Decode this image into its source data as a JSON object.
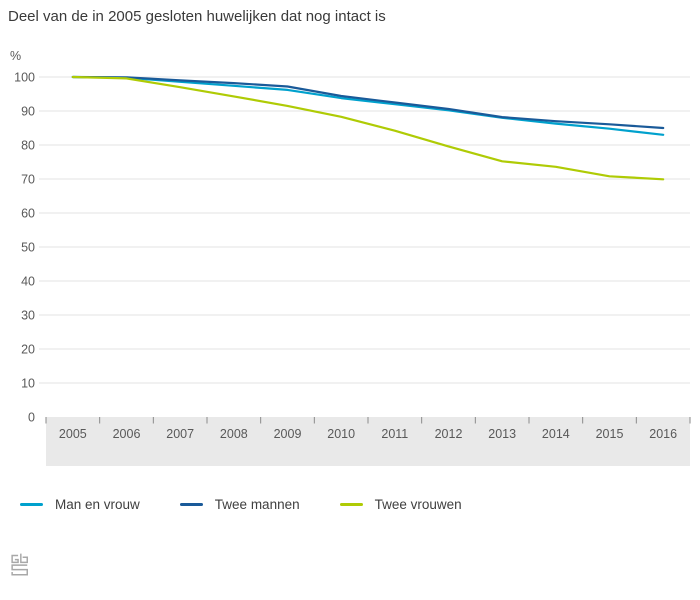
{
  "chart": {
    "title": "Deel van de in 2005 gesloten huwelijken dat nog intact is",
    "unit_label": "%"
  },
  "chart_data": {
    "type": "line",
    "title": "Deel van de in 2005 gesloten huwelijken dat nog intact is",
    "xlabel": "",
    "ylabel": "%",
    "ylim": [
      0,
      100
    ],
    "ytick_step": 10,
    "grid": true,
    "legend_position": "bottom",
    "categories": [
      "2005",
      "2006",
      "2007",
      "2008",
      "2009",
      "2010",
      "2011",
      "2012",
      "2013",
      "2014",
      "2015",
      "2016"
    ],
    "series": [
      {
        "name": "Man en vrouw",
        "color": "#00a1cd",
        "values": [
          100,
          99.8,
          98.6,
          97.4,
          96.2,
          93.8,
          92.0,
          90.2,
          88.0,
          86.3,
          84.8,
          83.0
        ]
      },
      {
        "name": "Twee mannen",
        "color": "#1a5a99",
        "values": [
          100,
          99.9,
          99.0,
          98.2,
          97.2,
          94.4,
          92.5,
          90.6,
          88.2,
          87.0,
          86.1,
          85.0
        ]
      },
      {
        "name": "Twee vrouwen",
        "color": "#afcb05",
        "values": [
          100,
          99.6,
          97.0,
          94.3,
          91.5,
          88.3,
          84.2,
          79.6,
          75.2,
          73.6,
          70.8,
          69.9
        ]
      }
    ]
  },
  "colors": {
    "axis_band": "#e9e9e9",
    "gridline": "#e3e3e3",
    "tick": "#8a8a8a",
    "axis_text": "#595959",
    "title_text": "#3a3a3a",
    "legend_text": "#3f3f3f",
    "logo": "#a8a8a8"
  },
  "footer": {
    "logo_icon": "cbs-logo"
  }
}
